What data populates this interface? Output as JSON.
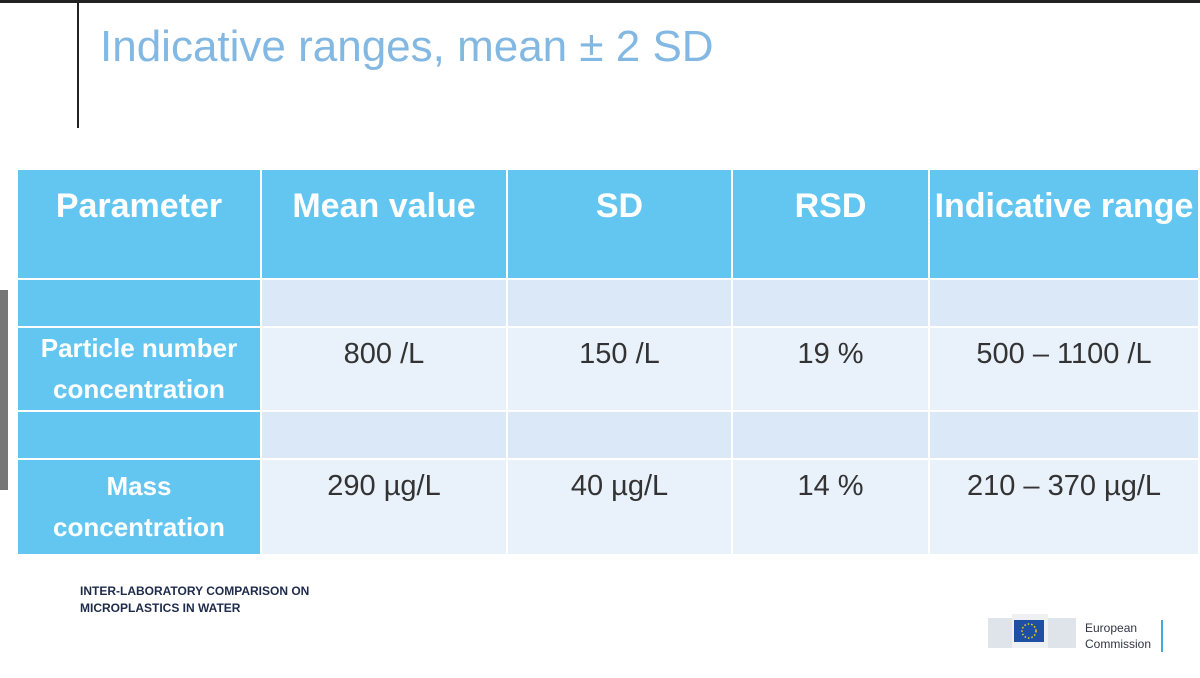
{
  "title": "Indicative ranges, mean ± 2 SD",
  "table": {
    "header": [
      "Parameter",
      "Mean value",
      "SD",
      "RSD",
      "Indicative range"
    ],
    "rows": [
      [
        "Particle number concentration",
        "800 /L",
        "150 /L",
        "19 %",
        "500 – 1100 /L"
      ],
      [
        "Mass concentration",
        "290 µg/L",
        "40 µg/L",
        "14 %",
        "210 – 370 µg/L"
      ]
    ]
  },
  "footer": {
    "project_lines": [
      "INTER-LABORATORY COMPARISON ON",
      "MICROPLASTICS IN WATER"
    ],
    "logo_lines": [
      "European",
      "Commission"
    ]
  }
}
